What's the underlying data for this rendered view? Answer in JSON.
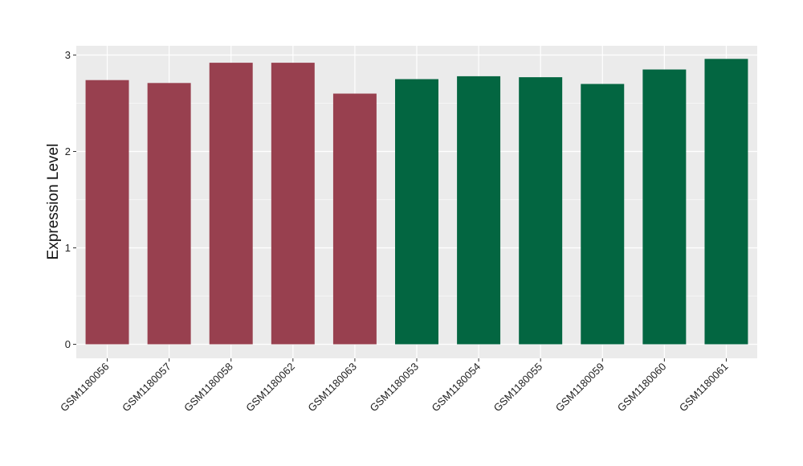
{
  "chart_data": {
    "type": "bar",
    "title": "",
    "xlabel": "",
    "ylabel": "Expression Level",
    "ylim": [
      0,
      3.1
    ],
    "yticks": [
      0,
      1,
      2,
      3
    ],
    "grid": true,
    "legend": "none",
    "categories": [
      "GSM1180056",
      "GSM1180057",
      "GSM1180058",
      "GSM1180062",
      "GSM1180063",
      "GSM1180053",
      "GSM1180054",
      "GSM1180055",
      "GSM1180059",
      "GSM1180060",
      "GSM1180061"
    ],
    "values": [
      2.74,
      2.71,
      2.92,
      2.92,
      2.6,
      2.75,
      2.78,
      2.77,
      2.7,
      2.85,
      2.96
    ],
    "bar_colors": [
      "#98404F",
      "#98404F",
      "#98404F",
      "#98404F",
      "#98404F",
      "#036641",
      "#036641",
      "#036641",
      "#036641",
      "#036641",
      "#036641"
    ],
    "panel_background": "#EBEBEB",
    "gridline_color": "#FFFFFF"
  }
}
